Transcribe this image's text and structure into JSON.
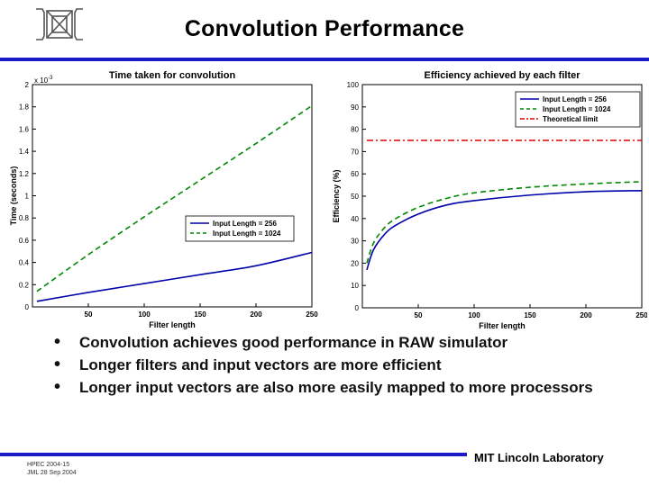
{
  "slide": {
    "title": "Convolution Performance",
    "bullets": [
      "Convolution achieves good performance in RAW simulator",
      "Longer filters and input vectors are more efficient",
      "Longer input vectors are also more easily mapped to more processors"
    ],
    "footer_left": [
      "HPEC 2004-15",
      "JML 28 Sep 2004"
    ],
    "footer_right": "MIT Lincoln Laboratory",
    "colors": {
      "rule": "#1a1ac8",
      "series_256": "#0000aa",
      "series_1024": "#008800",
      "limit": "#dd0000"
    }
  },
  "chart_data": [
    {
      "type": "line",
      "title": "Time taken for convolution",
      "xlabel": "Filter length",
      "ylabel": "Time (seconds)",
      "y_exponent_label": "x 10",
      "y_exponent_power": "-3",
      "xlim": [
        0,
        250
      ],
      "ylim": [
        0,
        2
      ],
      "xticks": [
        50,
        100,
        150,
        200,
        250
      ],
      "yticks": [
        0,
        0.2,
        0.4,
        0.6,
        0.8,
        1,
        1.2,
        1.4,
        1.6,
        1.8,
        2
      ],
      "ytick_labels": [
        "0",
        "0.2",
        "0.4",
        "0.6",
        "0.8",
        "1",
        "1.2",
        "1.4",
        "1.6",
        "1.8",
        "2"
      ],
      "legend": "center-right",
      "series": [
        {
          "name": "Input Length = 256",
          "style": "solid",
          "color": "#0000aa",
          "x": [
            4,
            50,
            100,
            150,
            200,
            250
          ],
          "values": [
            0.05,
            0.13,
            0.21,
            0.29,
            0.37,
            0.49
          ]
        },
        {
          "name": "Input Length = 1024",
          "style": "dashed",
          "color": "#008800",
          "x": [
            4,
            50,
            100,
            150,
            200,
            250
          ],
          "values": [
            0.14,
            0.47,
            0.81,
            1.14,
            1.47,
            1.81
          ]
        }
      ]
    },
    {
      "type": "line",
      "title": "Efficiency achieved by each filter",
      "xlabel": "Filter length",
      "ylabel": "Efficiency (%)",
      "xlim": [
        0,
        250
      ],
      "ylim": [
        0,
        100
      ],
      "xticks": [
        50,
        100,
        150,
        200,
        250
      ],
      "yticks": [
        0,
        10,
        20,
        30,
        40,
        50,
        60,
        70,
        80,
        90,
        100
      ],
      "ytick_labels": [
        "0",
        "10",
        "20",
        "30",
        "40",
        "50",
        "60",
        "70",
        "80",
        "90",
        "100"
      ],
      "legend": "top-right",
      "series": [
        {
          "name": "Input Length = 256",
          "style": "solid",
          "color": "#0000aa",
          "x": [
            4,
            10,
            20,
            30,
            50,
            75,
            100,
            150,
            200,
            250
          ],
          "values": [
            17,
            26,
            33,
            37,
            42,
            46,
            48,
            50.5,
            52,
            52.5
          ]
        },
        {
          "name": "Input Length = 1024",
          "style": "dashed",
          "color": "#008800",
          "x": [
            4,
            10,
            20,
            30,
            50,
            75,
            100,
            150,
            200,
            250
          ],
          "values": [
            20,
            29,
            36,
            40,
            45,
            49,
            51.5,
            54,
            55.5,
            56.5
          ]
        },
        {
          "name": "Theoretical limit",
          "style": "dashdot",
          "color": "#dd0000",
          "x": [
            4,
            250
          ],
          "values": [
            75,
            75
          ]
        }
      ]
    }
  ]
}
